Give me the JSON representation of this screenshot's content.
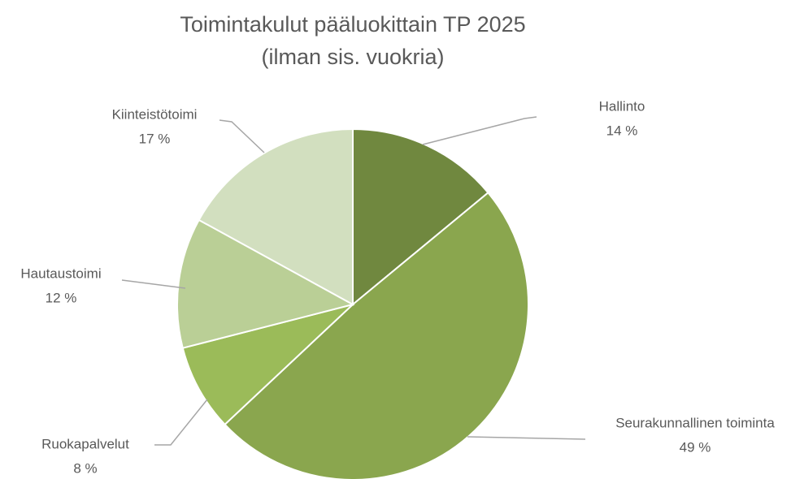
{
  "chart_data": {
    "type": "pie",
    "title": "Toimintakulut pääluokittain TP 2025",
    "subtitle": "(ilman sis. vuokria)",
    "categories": [
      "Hallinto",
      "Seurakunnallinen toiminta",
      "Ruokapalvelut",
      "Hautaustoimi",
      "Kiinteistötoimi"
    ],
    "values": [
      14,
      49,
      8,
      12,
      17
    ],
    "value_labels": [
      "14 %",
      "49 %",
      "8 %",
      "12 %",
      "17 %"
    ],
    "colors": [
      "#70883f",
      "#8aa64e",
      "#9bbb59",
      "#bacf96",
      "#d2dfbf"
    ]
  }
}
